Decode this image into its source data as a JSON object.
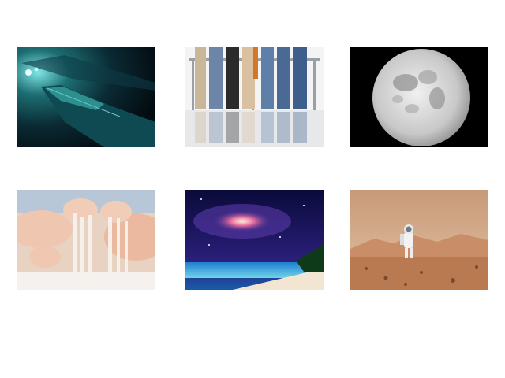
{
  "gallery": {
    "images": [
      {
        "subject": "shipwreck-underwater"
      },
      {
        "subject": "people-legs-standing-in-line"
      },
      {
        "subject": "full-moon"
      },
      {
        "subject": "hands-pouring-sand"
      },
      {
        "subject": "galaxy-over-beach"
      },
      {
        "subject": "astronaut-on-mars"
      }
    ]
  }
}
